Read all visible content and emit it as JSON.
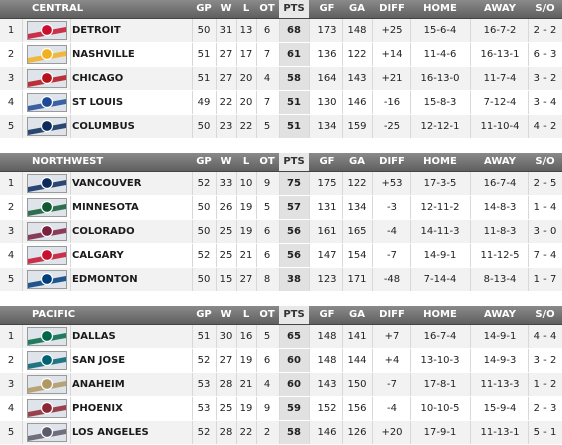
{
  "headers": {
    "gp": "GP",
    "w": "W",
    "l": "L",
    "ot": "OT",
    "pts": "PTS",
    "gf": "GF",
    "ga": "GA",
    "diff": "DIFF",
    "home": "HOME",
    "away": "AWAY",
    "so": "S/O"
  },
  "divisions": [
    {
      "name": "CENTRAL",
      "teams": [
        {
          "rank": "1",
          "team": "DETROIT",
          "logo": "detroit-logo",
          "color": "#c8102e",
          "gp": "50",
          "w": "31",
          "l": "13",
          "ot": "6",
          "pts": "68",
          "gf": "173",
          "ga": "148",
          "diff": "+25",
          "home": "15-6-4",
          "away": "16-7-2",
          "so": "2 - 2"
        },
        {
          "rank": "2",
          "team": "NASHVILLE",
          "logo": "nashville-logo",
          "color": "#f2b01e",
          "gp": "51",
          "w": "27",
          "l": "17",
          "ot": "7",
          "pts": "61",
          "gf": "136",
          "ga": "122",
          "diff": "+14",
          "home": "11-4-6",
          "away": "16-13-1",
          "so": "6 - 3"
        },
        {
          "rank": "3",
          "team": "CHICAGO",
          "logo": "chicago-logo",
          "color": "#b5121b",
          "gp": "51",
          "w": "27",
          "l": "20",
          "ot": "4",
          "pts": "58",
          "gf": "164",
          "ga": "143",
          "diff": "+21",
          "home": "16-13-0",
          "away": "11-7-4",
          "so": "3 - 2"
        },
        {
          "rank": "4",
          "team": "ST LOUIS",
          "logo": "st-louis-logo",
          "color": "#1d4a97",
          "gp": "49",
          "w": "22",
          "l": "20",
          "ot": "7",
          "pts": "51",
          "gf": "130",
          "ga": "146",
          "diff": "-16",
          "home": "15-8-3",
          "away": "7-12-4",
          "so": "3 - 4"
        },
        {
          "rank": "5",
          "team": "COLUMBUS",
          "logo": "columbus-logo",
          "color": "#0b2c5a",
          "gp": "50",
          "w": "23",
          "l": "22",
          "ot": "5",
          "pts": "51",
          "gf": "134",
          "ga": "159",
          "diff": "-25",
          "home": "12-12-1",
          "away": "11-10-4",
          "so": "4 - 2"
        }
      ]
    },
    {
      "name": "NORTHWEST",
      "teams": [
        {
          "rank": "1",
          "team": "VANCOUVER",
          "logo": "vancouver-logo",
          "color": "#0a2b5c",
          "gp": "52",
          "w": "33",
          "l": "10",
          "ot": "9",
          "pts": "75",
          "gf": "175",
          "ga": "122",
          "diff": "+53",
          "home": "17-3-5",
          "away": "16-7-4",
          "so": "2 - 5"
        },
        {
          "rank": "2",
          "team": "MINNESOTA",
          "logo": "minnesota-logo",
          "color": "#0f5a32",
          "gp": "50",
          "w": "26",
          "l": "19",
          "ot": "5",
          "pts": "57",
          "gf": "131",
          "ga": "134",
          "diff": "-3",
          "home": "12-11-2",
          "away": "14-8-3",
          "so": "1 - 4"
        },
        {
          "rank": "3",
          "team": "COLORADO",
          "logo": "colorado-logo",
          "color": "#7a1f3d",
          "gp": "50",
          "w": "25",
          "l": "19",
          "ot": "6",
          "pts": "56",
          "gf": "161",
          "ga": "165",
          "diff": "-4",
          "home": "14-11-3",
          "away": "11-8-3",
          "so": "3 - 0"
        },
        {
          "rank": "4",
          "team": "CALGARY",
          "logo": "calgary-logo",
          "color": "#c8102e",
          "gp": "52",
          "w": "25",
          "l": "21",
          "ot": "6",
          "pts": "56",
          "gf": "147",
          "ga": "154",
          "diff": "-7",
          "home": "14-9-1",
          "away": "11-12-5",
          "so": "7 - 4"
        },
        {
          "rank": "5",
          "team": "EDMONTON",
          "logo": "edmonton-logo",
          "color": "#003d7d",
          "gp": "50",
          "w": "15",
          "l": "27",
          "ot": "8",
          "pts": "38",
          "gf": "123",
          "ga": "171",
          "diff": "-48",
          "home": "7-14-4",
          "away": "8-13-4",
          "so": "1 - 7"
        }
      ]
    },
    {
      "name": "PACIFIC",
      "teams": [
        {
          "rank": "1",
          "team": "DALLAS",
          "logo": "dallas-logo",
          "color": "#006847",
          "gp": "51",
          "w": "30",
          "l": "16",
          "ot": "5",
          "pts": "65",
          "gf": "148",
          "ga": "141",
          "diff": "+7",
          "home": "16-7-4",
          "away": "14-9-1",
          "so": "4 - 4"
        },
        {
          "rank": "2",
          "team": "SAN JOSE",
          "logo": "san-jose-logo",
          "color": "#006272",
          "gp": "52",
          "w": "27",
          "l": "19",
          "ot": "6",
          "pts": "60",
          "gf": "148",
          "ga": "144",
          "diff": "+4",
          "home": "13-10-3",
          "away": "14-9-3",
          "so": "3 - 2"
        },
        {
          "rank": "3",
          "team": "ANAHEIM",
          "logo": "anaheim-logo",
          "color": "#b09862",
          "gp": "53",
          "w": "28",
          "l": "21",
          "ot": "4",
          "pts": "60",
          "gf": "143",
          "ga": "150",
          "diff": "-7",
          "home": "17-8-1",
          "away": "11-13-3",
          "so": "1 - 2"
        },
        {
          "rank": "4",
          "team": "PHOENIX",
          "logo": "phoenix-logo",
          "color": "#8c2633",
          "gp": "53",
          "w": "25",
          "l": "19",
          "ot": "9",
          "pts": "59",
          "gf": "152",
          "ga": "156",
          "diff": "-4",
          "home": "10-10-5",
          "away": "15-9-4",
          "so": "2 - 3"
        },
        {
          "rank": "5",
          "team": "LOS ANGELES",
          "logo": "los-angeles-logo",
          "color": "#5a5a6a",
          "gp": "52",
          "w": "28",
          "l": "22",
          "ot": "2",
          "pts": "58",
          "gf": "146",
          "ga": "126",
          "diff": "+20",
          "home": "17-9-1",
          "away": "11-13-1",
          "so": "5 - 1"
        }
      ]
    }
  ]
}
